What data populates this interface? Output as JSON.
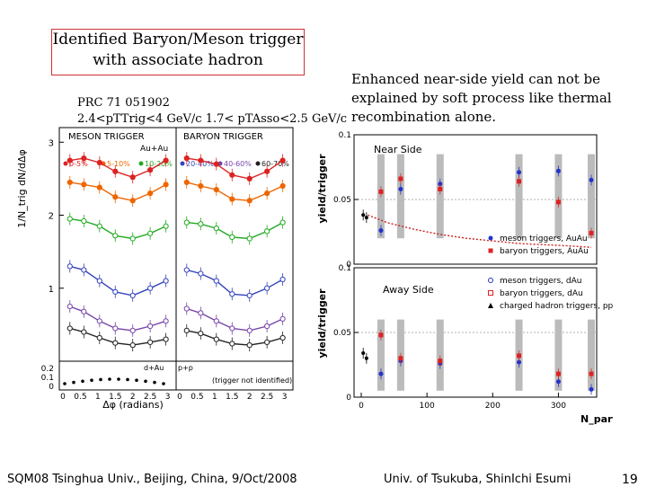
{
  "title": {
    "line1": "Identified Baryon/Meson trigger",
    "line2": "with associate hadron"
  },
  "reference": {
    "line1": "PRC 71 051902",
    "line2": "2.4<pTTrig<4 GeV/c 1.7< pTAsso<2.5 GeV/c"
  },
  "note": {
    "line1": "Enhanced near-side yield can not be",
    "line2": "explained by soft process like thermal",
    "line3": "recombination alone."
  },
  "footer": {
    "left": "SQM08 Tsinghua Univ., Beijing, China, 9/Oct/2008",
    "right": "Univ. of Tsukuba, ShinIchi Esumi",
    "page": "19"
  },
  "chart_data": [
    {
      "type": "scatter",
      "panels": [
        "MESON TRIGGER",
        "BARYON TRIGGER"
      ],
      "system_label": "Au+Au",
      "xlabel": "Δφ (radians)",
      "ylabel": "1/N_trig dN/dΔφ",
      "ylim": [
        0,
        3.2
      ],
      "xticks": [
        "0",
        "0.5",
        "1",
        "1.5",
        "2",
        "2.5",
        "3"
      ],
      "yticks": [
        "1",
        "2",
        "3"
      ],
      "subpanel_yticks": [
        "0",
        "0.1",
        "0.2"
      ],
      "legend": [
        "0-5%",
        "5-10%",
        "10-20%",
        "20-40%",
        "40-60%",
        "60-70%"
      ],
      "subpanel_labels": [
        "d+Au",
        "p+p",
        "(trigger not identified)"
      ],
      "series": [
        {
          "name": "0-5%",
          "color": "#dd2222",
          "meson": [
            2.75,
            2.78,
            2.72,
            2.6,
            2.52,
            2.62,
            2.75
          ],
          "baryon": [
            2.78,
            2.75,
            2.7,
            2.55,
            2.5,
            2.6,
            2.75
          ]
        },
        {
          "name": "5-10%",
          "color": "#ee6600",
          "meson": [
            2.45,
            2.42,
            2.38,
            2.25,
            2.2,
            2.3,
            2.42
          ],
          "baryon": [
            2.45,
            2.4,
            2.35,
            2.22,
            2.2,
            2.3,
            2.4
          ]
        },
        {
          "name": "10-20%",
          "color": "#22aa22",
          "meson": [
            1.95,
            1.92,
            1.85,
            1.72,
            1.68,
            1.75,
            1.85
          ],
          "baryon": [
            1.9,
            1.88,
            1.82,
            1.7,
            1.68,
            1.78,
            1.9
          ]
        },
        {
          "name": "20-40%",
          "color": "#3344bb",
          "meson": [
            1.3,
            1.25,
            1.1,
            0.95,
            0.9,
            1.0,
            1.1
          ],
          "baryon": [
            1.25,
            1.2,
            1.1,
            0.92,
            0.9,
            1.0,
            1.12
          ]
        },
        {
          "name": "40-60%",
          "color": "#7744aa",
          "meson": [
            0.75,
            0.68,
            0.55,
            0.45,
            0.42,
            0.48,
            0.55
          ],
          "baryon": [
            0.72,
            0.66,
            0.55,
            0.45,
            0.42,
            0.48,
            0.58
          ]
        },
        {
          "name": "60-70%",
          "color": "#222222",
          "meson": [
            0.45,
            0.4,
            0.32,
            0.25,
            0.22,
            0.26,
            0.3
          ],
          "baryon": [
            0.42,
            0.38,
            0.3,
            0.24,
            0.22,
            0.26,
            0.32
          ]
        }
      ]
    },
    {
      "type": "scatter",
      "panels": [
        "Near Side",
        "Away Side"
      ],
      "xlabel": "N_part",
      "ylabel": "yield/trigger",
      "xticks": [
        "0",
        "100",
        "200",
        "300"
      ],
      "near_side": {
        "ylim": [
          0,
          0.1
        ],
        "yticks": [
          "0",
          "0.05",
          "0.1"
        ],
        "legend": [
          "meson triggers, AuAu",
          "baryon triggers, AuAu"
        ],
        "series": [
          {
            "name": "meson triggers, AuAu",
            "color": "#2233cc",
            "x": [
              30,
              60,
              120,
              240,
              300,
              350
            ],
            "y": [
              0.026,
              0.058,
              0.062,
              0.071,
              0.072,
              0.065
            ]
          },
          {
            "name": "baryon triggers, AuAu",
            "color": "#dd2222",
            "x": [
              30,
              60,
              120,
              240,
              300,
              350
            ],
            "y": [
              0.056,
              0.066,
              0.058,
              0.064,
              0.048,
              0.024
            ]
          },
          {
            "name": "dAu / pp",
            "color": "#000000",
            "x": [
              3,
              8
            ],
            "y": [
              0.038,
              0.036
            ]
          }
        ],
        "curve": {
          "x": [
            10,
            40,
            80,
            120,
            160,
            200,
            240,
            280,
            320,
            350
          ],
          "y": [
            0.038,
            0.032,
            0.027,
            0.023,
            0.02,
            0.018,
            0.016,
            0.015,
            0.014,
            0.013
          ]
        }
      },
      "away_side": {
        "ylim": [
          0,
          0.1
        ],
        "yticks": [
          "0",
          "0.05",
          "0.1"
        ],
        "legend": [
          "meson triggers, dAu",
          "baryon triggers, dAu",
          "charged hadron triggers, pp"
        ],
        "series": [
          {
            "name": "meson triggers, AuAu",
            "color": "#2233cc",
            "x": [
              30,
              60,
              120,
              240,
              300,
              350
            ],
            "y": [
              0.018,
              0.028,
              0.026,
              0.027,
              0.012,
              0.006
            ]
          },
          {
            "name": "baryon triggers, AuAu",
            "color": "#dd2222",
            "x": [
              30,
              60,
              120,
              240,
              300,
              350
            ],
            "y": [
              0.048,
              0.03,
              0.028,
              0.032,
              0.018,
              0.018
            ]
          },
          {
            "name": "dAu / pp",
            "color": "#000000",
            "x": [
              3,
              8
            ],
            "y": [
              0.034,
              0.03
            ]
          }
        ]
      }
    }
  ]
}
